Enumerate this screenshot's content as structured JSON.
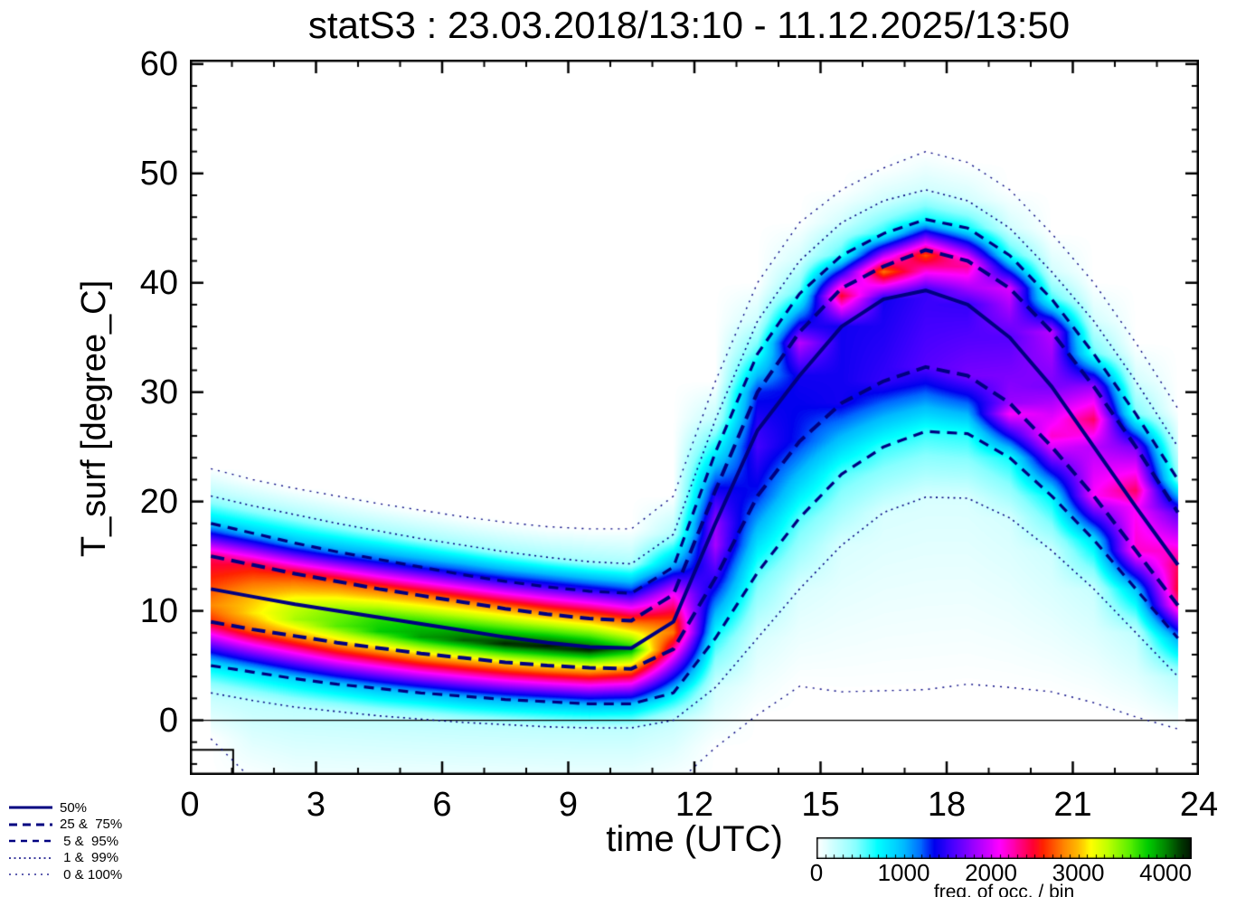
{
  "title": "statS3 : 23.03.2018/13:10 - 11.12.2025/13:50",
  "axes": {
    "x": {
      "label": "time (UTC)",
      "min": 0,
      "max": 24,
      "major_ticks": [
        0,
        3,
        6,
        9,
        12,
        15,
        18,
        21,
        24
      ],
      "minor_step": 1
    },
    "y": {
      "label": "T_surf [degree_C]",
      "min": -5,
      "max": 60.4,
      "major_ticks": [
        0,
        10,
        20,
        30,
        40,
        50,
        60
      ],
      "minor_step": 2
    }
  },
  "legend": {
    "items": [
      {
        "label": "50%",
        "style": "solid",
        "keys": [
          "p50"
        ]
      },
      {
        "label": "25 &  75%",
        "style": "dash-long",
        "keys": [
          "p25",
          "p75"
        ]
      },
      {
        "label": " 5 &  95%",
        "style": "dash",
        "keys": [
          "p5",
          "p95"
        ]
      },
      {
        "label": " 1 &  99%",
        "style": "dot",
        "keys": [
          "p1",
          "p99"
        ]
      },
      {
        "label": " 0 & 100%",
        "style": "dot-sparse",
        "keys": [
          "p0",
          "p100"
        ]
      }
    ]
  },
  "colorbar": {
    "caption": "freq. of occ. / bin",
    "ticks": [
      0,
      1000,
      2000,
      3000,
      4000
    ],
    "max": 4300
  },
  "chart_data": {
    "type": "heatmap",
    "description": "2D histogram of surface temperature vs time of day with percentile contour lines",
    "hours_bin_centers": [
      0.5,
      1.5,
      2.5,
      3.5,
      4.5,
      5.5,
      6.5,
      7.5,
      8.5,
      9.5,
      10.5,
      11.5,
      12.5,
      13.5,
      14.5,
      15.5,
      16.5,
      17.5,
      18.5,
      19.5,
      20.5,
      21.5,
      22.5,
      23.5
    ],
    "percentiles": {
      "p100": [
        23.0,
        22.0,
        21.2,
        20.5,
        19.8,
        19.2,
        18.6,
        18.1,
        17.7,
        17.5,
        17.5,
        20.5,
        31.0,
        40.0,
        45.5,
        48.5,
        50.5,
        52.0,
        51.0,
        48.5,
        44.5,
        40.0,
        34.5,
        28.5
      ],
      "p99": [
        20.5,
        19.6,
        18.8,
        18.0,
        17.3,
        16.6,
        16.0,
        15.4,
        14.9,
        14.5,
        14.3,
        17.0,
        27.5,
        36.5,
        42.0,
        45.5,
        47.5,
        48.5,
        47.5,
        45.0,
        41.0,
        36.5,
        31.0,
        25.0
      ],
      "p95": [
        18.0,
        17.1,
        16.2,
        15.4,
        14.7,
        14.0,
        13.3,
        12.7,
        12.2,
        11.8,
        11.6,
        14.0,
        24.5,
        33.5,
        39.0,
        42.5,
        44.5,
        45.8,
        45.0,
        42.5,
        38.5,
        33.5,
        28.0,
        22.0
      ],
      "p75": [
        15.0,
        14.2,
        13.4,
        12.7,
        12.0,
        11.4,
        10.8,
        10.2,
        9.7,
        9.3,
        9.1,
        11.5,
        21.0,
        30.0,
        35.5,
        39.5,
        41.5,
        43.0,
        42.0,
        39.5,
        35.5,
        30.5,
        25.0,
        19.0
      ],
      "p50": [
        12.0,
        11.3,
        10.6,
        10.0,
        9.4,
        8.8,
        8.2,
        7.6,
        7.1,
        6.7,
        6.6,
        9.0,
        18.0,
        26.5,
        31.5,
        36.0,
        38.5,
        39.3,
        38.0,
        35.0,
        30.5,
        25.0,
        19.5,
        14.2
      ],
      "p25": [
        9.0,
        8.3,
        7.7,
        7.1,
        6.6,
        6.1,
        5.7,
        5.3,
        5.0,
        4.8,
        4.7,
        6.5,
        13.0,
        20.5,
        25.5,
        29.0,
        31.0,
        32.3,
        31.5,
        29.0,
        25.0,
        20.5,
        15.5,
        10.5
      ],
      "p5": [
        5.0,
        4.4,
        3.8,
        3.3,
        2.9,
        2.5,
        2.2,
        1.9,
        1.7,
        1.5,
        1.5,
        2.5,
        7.5,
        13.5,
        18.5,
        22.5,
        25.0,
        26.4,
        26.2,
        24.0,
        20.5,
        16.5,
        12.0,
        7.5
      ],
      "p1": [
        2.5,
        1.8,
        1.2,
        0.8,
        0.4,
        0.1,
        -0.2,
        -0.4,
        -0.6,
        -0.7,
        -0.7,
        0.0,
        3.0,
        7.5,
        12.0,
        16.0,
        19.0,
        20.4,
        20.3,
        18.5,
        15.5,
        12.0,
        8.0,
        4.0
      ],
      "p0": [
        -1.7,
        -5.5,
        -7.0,
        -7.0,
        -7.0,
        -7.0,
        -7.0,
        -7.0,
        -7.0,
        -7.0,
        -7.0,
        -6.0,
        -2.5,
        0.5,
        3.1,
        2.6,
        2.7,
        2.8,
        3.3,
        3.0,
        2.6,
        1.6,
        0.3,
        -0.8
      ]
    },
    "percentile_freq": {
      "p99": [
        300,
        310,
        320,
        330,
        340,
        350,
        350,
        350,
        350,
        350,
        330,
        300,
        250,
        200,
        180,
        180,
        180,
        180,
        180,
        180,
        180,
        180,
        180,
        180
      ],
      "p95": [
        900,
        950,
        1000,
        1100,
        1200,
        1300,
        1400,
        1450,
        1500,
        1500,
        1400,
        1100,
        750,
        600,
        550,
        600,
        650,
        700,
        700,
        650,
        600,
        550,
        500,
        450
      ],
      "p75": [
        2400,
        2500,
        2600,
        2700,
        2750,
        2800,
        2850,
        2900,
        2900,
        2900,
        2700,
        2100,
        1400,
        1300,
        1600,
        2200,
        2500,
        2400,
        2200,
        2000,
        1900,
        1800,
        1700,
        1600
      ],
      "p50": [
        2700,
        3000,
        3300,
        3500,
        3700,
        3800,
        3900,
        4000,
        4100,
        4100,
        3800,
        2700,
        1800,
        1500,
        1400,
        1400,
        1400,
        1500,
        1500,
        1600,
        1700,
        1900,
        2100,
        2400
      ],
      "p25": [
        2600,
        2800,
        2900,
        3000,
        3050,
        3100,
        3100,
        3100,
        3100,
        3100,
        2900,
        2300,
        1500,
        1300,
        1300,
        1400,
        1500,
        1600,
        1700,
        1800,
        2000,
        2100,
        2200,
        2300
      ],
      "p5": [
        800,
        850,
        900,
        950,
        1000,
        1000,
        1050,
        1050,
        1050,
        1050,
        1000,
        850,
        650,
        550,
        550,
        550,
        600,
        620,
        650,
        680,
        750,
        850,
        950,
        1050
      ],
      "p1": [
        250,
        250,
        250,
        250,
        250,
        250,
        250,
        250,
        250,
        250,
        250,
        220,
        180,
        160,
        150,
        150,
        150,
        150,
        150,
        170,
        200,
        220,
        250,
        280
      ]
    },
    "hotspot": {
      "temp": [
        10.5,
        9.8,
        9.2,
        8.6,
        8.1,
        7.6,
        7.3,
        7.0,
        6.8,
        6.5,
        6.4,
        8.0,
        16.0,
        25.0,
        34.5,
        38.8,
        41.0,
        42.5,
        41.5,
        28.0,
        26.0,
        27.5,
        21.0,
        12.0
      ],
      "freq": [
        2850,
        3100,
        3400,
        3600,
        3800,
        3950,
        4100,
        4250,
        4300,
        4300,
        3900,
        2800,
        1850,
        1550,
        1900,
        2500,
        2800,
        2700,
        2300,
        2100,
        2200,
        2400,
        2400,
        2500
      ]
    },
    "zero_line_value": 0,
    "black_step_hours": [
      [
        0,
        -2.7
      ],
      [
        1.03,
        -2.7
      ],
      [
        1.03,
        -5.2
      ]
    ],
    "freq_max": 4300,
    "line_color": "#000080",
    "colormap_stops": [
      [
        0,
        "#ffffff"
      ],
      [
        200,
        "#ccffff"
      ],
      [
        450,
        "#88ffff"
      ],
      [
        700,
        "#00ffff"
      ],
      [
        1000,
        "#00bbff"
      ],
      [
        1200,
        "#0066ff"
      ],
      [
        1350,
        "#0000ee"
      ],
      [
        1550,
        "#4400ff"
      ],
      [
        1750,
        "#8800ff"
      ],
      [
        1950,
        "#cc00ff"
      ],
      [
        2100,
        "#ff00ff"
      ],
      [
        2300,
        "#ff0099"
      ],
      [
        2480,
        "#ff0033"
      ],
      [
        2600,
        "#ff2200"
      ],
      [
        2800,
        "#ff7700"
      ],
      [
        3000,
        "#ffbb00"
      ],
      [
        3150,
        "#ffff00"
      ],
      [
        3350,
        "#bbff00"
      ],
      [
        3600,
        "#55ee00"
      ],
      [
        3800,
        "#00cc00"
      ],
      [
        4000,
        "#008800"
      ],
      [
        4150,
        "#004400"
      ],
      [
        4300,
        "#001500"
      ]
    ]
  }
}
